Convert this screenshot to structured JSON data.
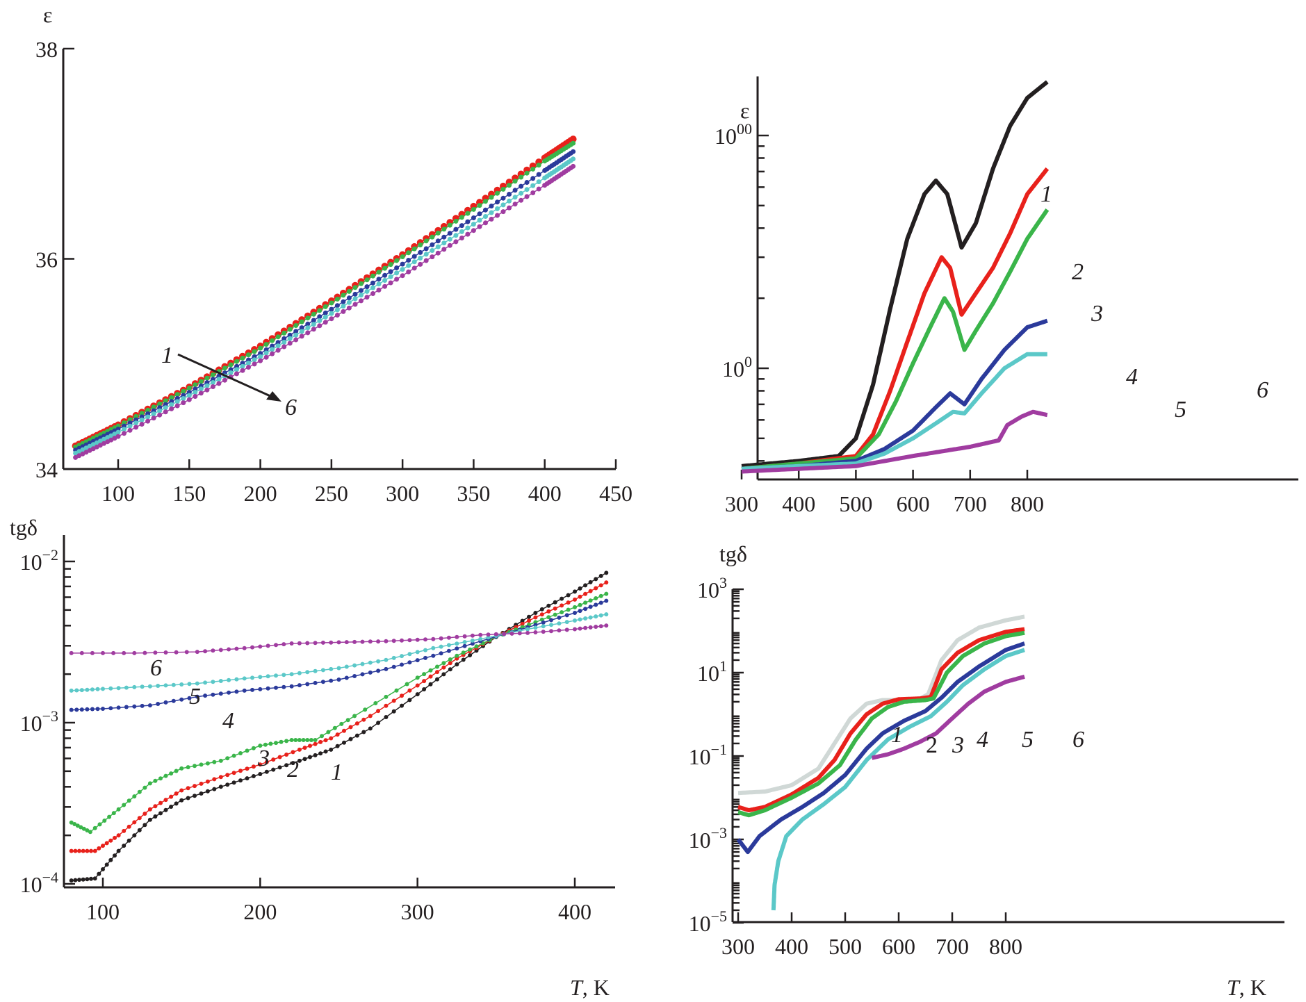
{
  "figure": {
    "panels": 4
  },
  "chart_data": [
    {
      "id": "top-left",
      "type": "scatter",
      "title": "",
      "ylabel": "ε",
      "xlabel": "",
      "xlim": [
        65,
        450
      ],
      "ylim": [
        34,
        38
      ],
      "yscale": "linear",
      "xticks": [
        100,
        150,
        200,
        250,
        300,
        350,
        400,
        450
      ],
      "xtick_labels": [
        "100",
        "150",
        "200",
        "250",
        "300",
        "350",
        "400",
        "450"
      ],
      "yticks": [
        34,
        36,
        38
      ],
      "ytick_labels": [
        "34",
        "36",
        "38"
      ],
      "annotation": {
        "from": "1",
        "to": "6",
        "type": "arrow"
      },
      "series": [
        {
          "name": "1",
          "color": "#231f20",
          "x": [
            70,
            100,
            150,
            200,
            250,
            300,
            350,
            400,
            420
          ],
          "y": [
            34.22,
            34.42,
            34.78,
            35.17,
            35.6,
            36.04,
            36.5,
            36.96,
            37.14
          ]
        },
        {
          "name": "2",
          "color": "#e8211b",
          "x": [
            70,
            100,
            150,
            200,
            250,
            300,
            350,
            400,
            420
          ],
          "y": [
            34.22,
            34.42,
            34.78,
            35.17,
            35.6,
            36.04,
            36.5,
            36.96,
            37.14
          ]
        },
        {
          "name": "3",
          "color": "#3ab54a",
          "x": [
            70,
            100,
            150,
            200,
            250,
            300,
            350,
            400,
            420
          ],
          "y": [
            34.21,
            34.41,
            34.77,
            35.15,
            35.58,
            36.02,
            36.47,
            36.93,
            37.1
          ]
        },
        {
          "name": "4",
          "color": "#2b3a9b",
          "x": [
            70,
            100,
            150,
            200,
            250,
            300,
            350,
            400,
            420
          ],
          "y": [
            34.18,
            34.38,
            34.73,
            35.1,
            35.52,
            35.95,
            36.39,
            36.84,
            37.02
          ]
        },
        {
          "name": "5",
          "color": "#5bc8c8",
          "x": [
            70,
            100,
            150,
            200,
            250,
            300,
            350,
            400,
            420
          ],
          "y": [
            34.15,
            34.35,
            34.7,
            35.07,
            35.48,
            35.9,
            36.33,
            36.77,
            36.95
          ]
        },
        {
          "name": "6",
          "color": "#a03ca0",
          "x": [
            70,
            100,
            150,
            200,
            250,
            300,
            350,
            400,
            420
          ],
          "y": [
            34.11,
            34.31,
            34.66,
            35.03,
            35.43,
            35.84,
            36.27,
            36.7,
            36.88
          ]
        }
      ]
    },
    {
      "id": "top-right",
      "type": "line",
      "title": "",
      "ylabel": "ε",
      "xlabel": "",
      "xlim": [
        288,
        840
      ],
      "ylim": [
        35,
        1750
      ],
      "yscale": "log",
      "xticks": [
        300,
        400,
        500,
        600,
        700,
        800
      ],
      "xtick_labels": [
        "300",
        "400",
        "500",
        "600",
        "700",
        "800"
      ],
      "yticks": [
        100,
        1000
      ],
      "ytick_labels": [
        "100",
        "1000"
      ],
      "series": [
        {
          "name": "1",
          "color": "#231f20",
          "x": [
            300,
            400,
            470,
            500,
            530,
            560,
            590,
            620,
            640,
            660,
            685,
            710,
            740,
            770,
            800,
            835
          ],
          "y": [
            38,
            40,
            42,
            50,
            85,
            180,
            360,
            560,
            640,
            560,
            330,
            420,
            720,
            1100,
            1450,
            1700
          ]
        },
        {
          "name": "2",
          "color": "#e8211b",
          "x": [
            300,
            400,
            500,
            530,
            560,
            590,
            620,
            650,
            665,
            685,
            710,
            740,
            770,
            800,
            835
          ],
          "y": [
            37,
            39,
            42,
            52,
            80,
            130,
            210,
            300,
            270,
            170,
            210,
            270,
            380,
            560,
            720
          ]
        },
        {
          "name": "3",
          "color": "#3ab54a",
          "x": [
            300,
            400,
            500,
            540,
            570,
            600,
            630,
            655,
            670,
            690,
            710,
            740,
            770,
            800,
            835
          ],
          "y": [
            37,
            39,
            41,
            52,
            72,
            105,
            150,
            200,
            175,
            120,
            145,
            190,
            260,
            360,
            480
          ]
        },
        {
          "name": "4",
          "color": "#2b3a9b",
          "x": [
            300,
            400,
            500,
            550,
            600,
            640,
            665,
            690,
            720,
            760,
            800,
            835
          ],
          "y": [
            37,
            38,
            40,
            45,
            54,
            68,
            78,
            70,
            90,
            120,
            150,
            160
          ]
        },
        {
          "name": "5",
          "color": "#5bc8c8",
          "x": [
            300,
            400,
            500,
            550,
            600,
            640,
            670,
            690,
            720,
            760,
            800,
            835
          ],
          "y": [
            37,
            38,
            39,
            43,
            50,
            58,
            65,
            64,
            78,
            100,
            115,
            115
          ]
        },
        {
          "name": "6",
          "color": "#a03ca0",
          "x": [
            300,
            400,
            500,
            600,
            700,
            750,
            765,
            790,
            810,
            835
          ],
          "y": [
            36,
            37,
            38,
            42,
            46,
            49,
            57,
            62,
            65,
            63
          ]
        }
      ]
    },
    {
      "id": "bottom-left",
      "type": "line",
      "title": "",
      "ylabel": "tgδ",
      "xlabel": "T, K",
      "xlim": [
        77,
        425
      ],
      "ylim": [
        0.0001,
        0.013
      ],
      "yscale": "log",
      "xticks": [
        100,
        200,
        300,
        400
      ],
      "xtick_labels": [
        "100",
        "200",
        "300",
        "400"
      ],
      "yticks": [
        0.0001,
        0.001,
        0.01
      ],
      "ytick_labels": [
        "10−4",
        "10−3",
        "10−2"
      ],
      "series": [
        {
          "name": "1",
          "color": "#231f20",
          "x": [
            80,
            95,
            110,
            130,
            150,
            175,
            200,
            225,
            245,
            270,
            300,
            325,
            350,
            375,
            400,
            420
          ],
          "y": [
            0.000105,
            0.000108,
            0.00016,
            0.00025,
            0.00033,
            0.0004,
            0.00048,
            0.00058,
            0.00068,
            0.00092,
            0.0015,
            0.0023,
            0.0034,
            0.0048,
            0.0065,
            0.0085
          ]
        },
        {
          "name": "2",
          "color": "#e8211b",
          "x": [
            80,
            95,
            110,
            130,
            150,
            175,
            200,
            225,
            245,
            270,
            300,
            325,
            350,
            375,
            400,
            420
          ],
          "y": [
            0.00016,
            0.00016,
            0.0002,
            0.00029,
            0.00038,
            0.00046,
            0.00055,
            0.00068,
            0.0008,
            0.0011,
            0.0017,
            0.0025,
            0.0034,
            0.0045,
            0.0058,
            0.0074
          ]
        },
        {
          "name": "3",
          "color": "#3ab54a",
          "x": [
            80,
            92,
            110,
            130,
            150,
            175,
            200,
            220,
            235,
            260,
            300,
            325,
            350,
            375,
            400,
            420
          ],
          "y": [
            0.00024,
            0.00021,
            0.00029,
            0.00042,
            0.00052,
            0.00058,
            0.00072,
            0.00078,
            0.00078,
            0.0011,
            0.0019,
            0.0026,
            0.0034,
            0.0042,
            0.0052,
            0.0063
          ]
        },
        {
          "name": "4",
          "color": "#2b3a9b",
          "x": [
            80,
            100,
            130,
            160,
            190,
            220,
            250,
            280,
            310,
            340,
            370,
            400,
            420
          ],
          "y": [
            0.0012,
            0.00122,
            0.00128,
            0.00145,
            0.00158,
            0.00168,
            0.00185,
            0.00215,
            0.0026,
            0.0032,
            0.0039,
            0.0048,
            0.0057
          ]
        },
        {
          "name": "5",
          "color": "#5bc8c8",
          "x": [
            80,
            100,
            130,
            160,
            190,
            220,
            250,
            280,
            310,
            340,
            370,
            400,
            420
          ],
          "y": [
            0.00158,
            0.00162,
            0.00168,
            0.00175,
            0.00188,
            0.002,
            0.00218,
            0.00245,
            0.0029,
            0.0033,
            0.0038,
            0.0043,
            0.0047
          ]
        },
        {
          "name": "6",
          "color": "#a03ca0",
          "x": [
            80,
            120,
            160,
            190,
            220,
            250,
            280,
            310,
            340,
            370,
            400,
            420
          ],
          "y": [
            0.0027,
            0.0027,
            0.00275,
            0.0029,
            0.0031,
            0.00315,
            0.0032,
            0.0033,
            0.0035,
            0.0036,
            0.0038,
            0.004
          ]
        }
      ]
    },
    {
      "id": "bottom-right",
      "type": "line",
      "title": "",
      "ylabel": "tgδ",
      "xlabel": "T, K",
      "xlim": [
        290,
        850
      ],
      "ylim": [
        1e-05,
        1000
      ],
      "yscale": "log",
      "xticks": [
        300,
        400,
        500,
        600,
        700,
        800
      ],
      "xtick_labels": [
        "300",
        "400",
        "500",
        "600",
        "700",
        "800"
      ],
      "yticks": [
        1e-05,
        0.001,
        0.1,
        10,
        1000
      ],
      "ytick_labels": [
        "10−5",
        "10−3",
        "10−1",
        "101",
        "103"
      ],
      "series": [
        {
          "name": "1",
          "color": "#d0d8d6",
          "x": [
            300,
            350,
            400,
            450,
            480,
            510,
            540,
            570,
            600,
            640,
            655,
            680,
            710,
            750,
            800,
            835
          ],
          "y": [
            0.013,
            0.014,
            0.02,
            0.05,
            0.2,
            0.8,
            1.8,
            2.2,
            2.2,
            2.4,
            3,
            20,
            60,
            120,
            180,
            220
          ]
        },
        {
          "name": "2",
          "color": "#e8211b",
          "x": [
            300,
            320,
            350,
            400,
            450,
            480,
            510,
            540,
            570,
            600,
            640,
            660,
            680,
            710,
            750,
            800,
            835
          ],
          "y": [
            0.006,
            0.005,
            0.006,
            0.012,
            0.03,
            0.08,
            0.35,
            1.0,
            1.8,
            2.3,
            2.4,
            2.6,
            12,
            30,
            60,
            95,
            110
          ]
        },
        {
          "name": "3",
          "color": "#3ab54a",
          "x": [
            300,
            320,
            350,
            400,
            450,
            490,
            520,
            550,
            580,
            610,
            650,
            665,
            690,
            720,
            760,
            800,
            835
          ],
          "y": [
            0.0045,
            0.0038,
            0.005,
            0.01,
            0.022,
            0.06,
            0.25,
            0.8,
            1.5,
            2.0,
            2.2,
            2.4,
            10,
            25,
            50,
            75,
            90
          ]
        },
        {
          "name": "4",
          "color": "#2b3a9b",
          "x": [
            300,
            318,
            340,
            380,
            420,
            460,
            500,
            540,
            570,
            610,
            650,
            680,
            710,
            750,
            800,
            835
          ],
          "y": [
            0.001,
            0.0005,
            0.0012,
            0.003,
            0.006,
            0.013,
            0.035,
            0.15,
            0.35,
            0.7,
            1.2,
            2.5,
            6,
            14,
            35,
            50
          ]
        },
        {
          "name": "5",
          "color": "#5bc8c8",
          "x": [
            366,
            368,
            375,
            390,
            420,
            460,
            500,
            540,
            580,
            620,
            660,
            690,
            720,
            760,
            800,
            835
          ],
          "y": [
            2e-05,
            8e-05,
            0.0003,
            0.0012,
            0.003,
            0.007,
            0.018,
            0.08,
            0.25,
            0.5,
            0.9,
            2,
            5,
            12,
            25,
            35
          ]
        },
        {
          "name": "6",
          "color": "#a03ca0",
          "x": [
            550,
            580,
            610,
            640,
            670,
            700,
            730,
            760,
            800,
            835
          ],
          "y": [
            0.09,
            0.11,
            0.15,
            0.22,
            0.35,
            0.8,
            1.8,
            3.5,
            6,
            8
          ]
        }
      ]
    }
  ],
  "labels": {
    "tl_ylabel": "ε",
    "tr_ylabel": "ε",
    "bl_ylabel": "tgδ",
    "br_ylabel": "tgδ",
    "bl_xlabel_var": "T",
    "bl_xlabel_unit": ", K",
    "br_xlabel_var": "T",
    "br_xlabel_unit": ", K",
    "tl_arrow_start": "1",
    "tl_arrow_end": "6",
    "tr_curves": [
      "1",
      "2",
      "3",
      "4",
      "5",
      "6"
    ],
    "bl_curves": [
      "1",
      "2",
      "3",
      "4",
      "5",
      "6"
    ],
    "br_curves": [
      "1",
      "2",
      "3",
      "4",
      "5",
      "6"
    ]
  }
}
